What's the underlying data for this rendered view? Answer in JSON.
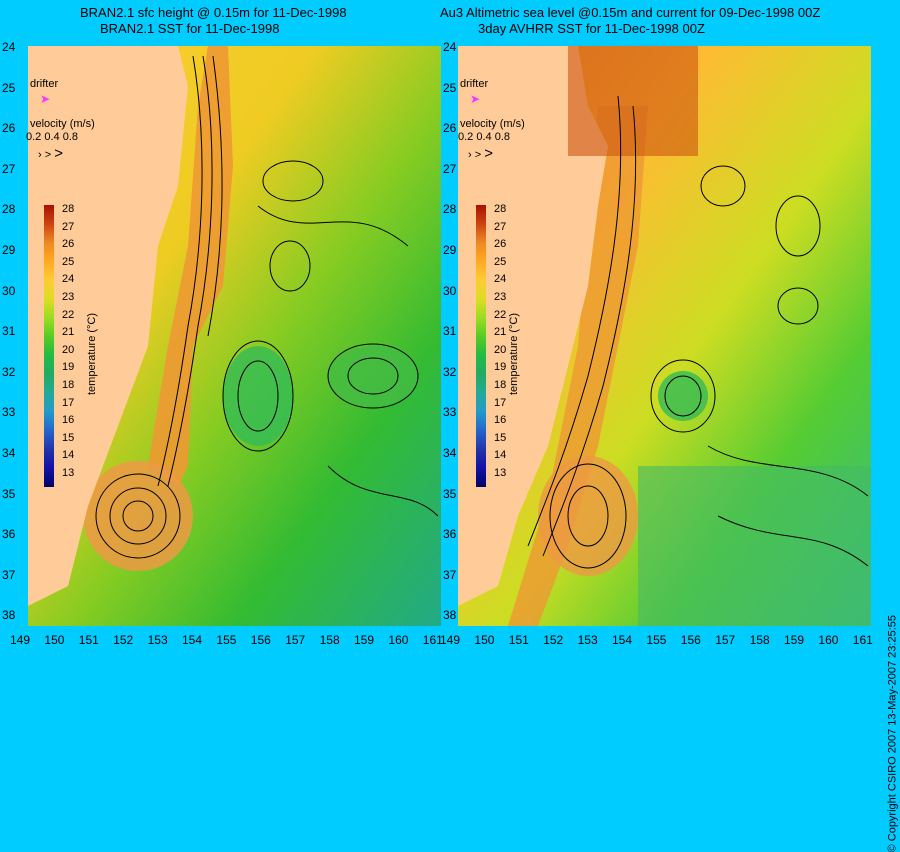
{
  "titles": {
    "left_line1": "BRAN2.1 sfc height @ 0.15m for 11-Dec-1998",
    "left_line2": "BRAN2.1 SST for 11-Dec-1998",
    "right_line1": "Au3 Altimetric sea level  @0.15m and current for 09-Dec-1998 00Z",
    "right_line2": "3day AVHRR SST for 11-Dec-1998 00Z"
  },
  "legend": {
    "drifter_label": "drifter",
    "velocity_label": "velocity (m/s)",
    "velocity_values": [
      "0.2",
      "0.4",
      "0.8"
    ],
    "colorbar_title": "temperature (°C)",
    "colorbar_ticks": [
      "28",
      "27",
      "26",
      "25",
      "24",
      "23",
      "22",
      "21",
      "20",
      "19",
      "18",
      "17",
      "16",
      "15",
      "14",
      "13"
    ],
    "colorbar_colors": [
      "#aa1100",
      "#cc4411",
      "#ee8822",
      "#ffaa22",
      "#ffcc33",
      "#dddd22",
      "#99dd22",
      "#55cc22",
      "#22bb44",
      "#22aa66",
      "#22aa99",
      "#2299cc",
      "#2266cc",
      "#2233aa",
      "#1111aa",
      "#000066"
    ]
  },
  "axes": {
    "lat_labels": [
      "24",
      "25",
      "26",
      "27",
      "28",
      "29",
      "30",
      "31",
      "32",
      "33",
      "34",
      "35",
      "36",
      "37",
      "38"
    ],
    "lon_labels": [
      "149",
      "150",
      "151",
      "152",
      "153",
      "154",
      "155",
      "156",
      "157",
      "158",
      "159",
      "160",
      "161"
    ]
  },
  "copyright": "© Copyright CSIRO 2007  13-May-2007 23:25:55",
  "colors": {
    "background": "#00ccff",
    "land": "#ffcc99",
    "drifter": "#ff33ff"
  }
}
